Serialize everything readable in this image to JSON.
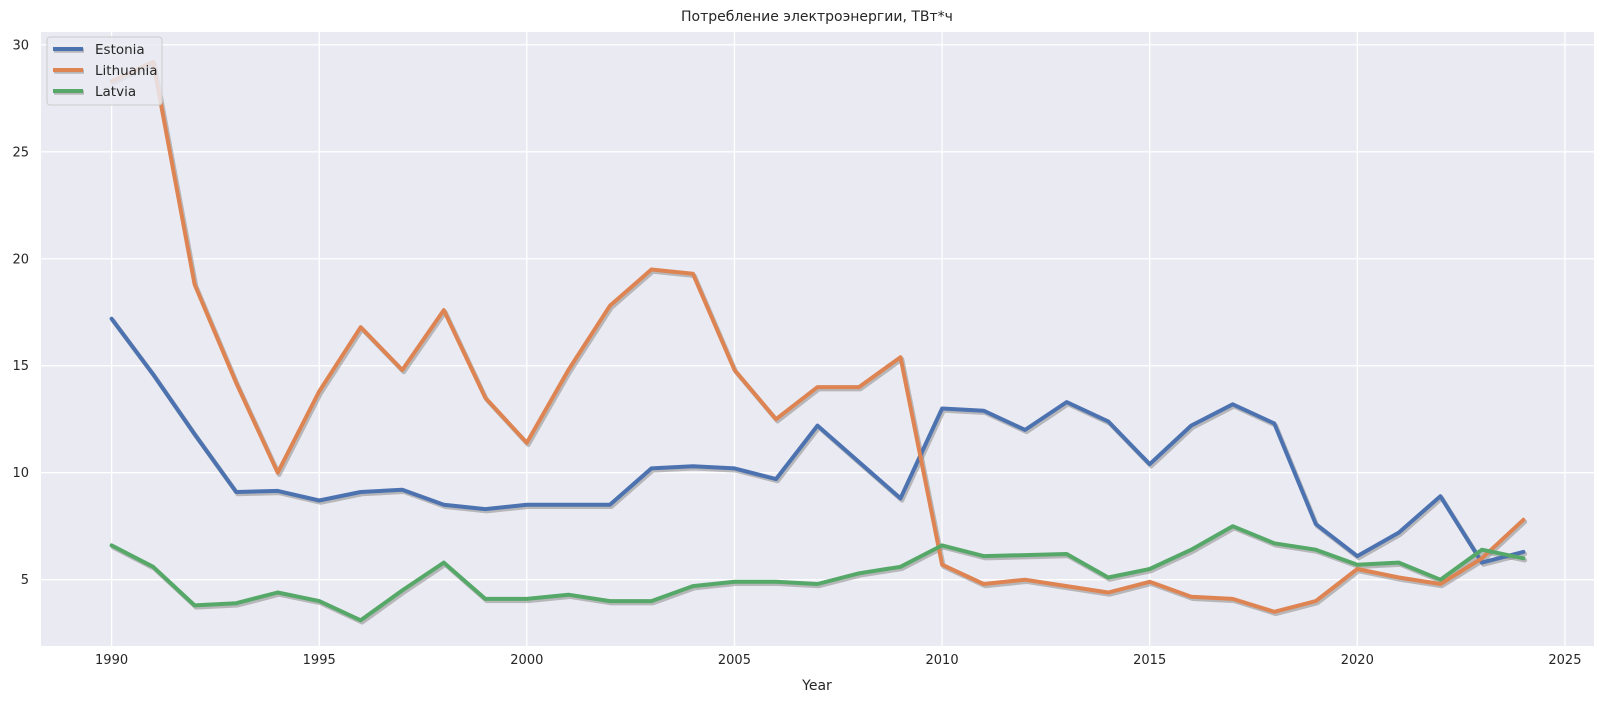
{
  "chart_data": {
    "type": "line",
    "title": "Потребление электроэнергии, ТВт*ч",
    "xlabel": "Year",
    "ylabel": "",
    "xlim": [
      1988.3,
      2025.7
    ],
    "ylim": [
      1.9,
      30.6
    ],
    "xticks": [
      1990,
      1995,
      2000,
      2005,
      2010,
      2015,
      2020,
      2025
    ],
    "yticks": [
      5,
      10,
      15,
      20,
      25,
      30
    ],
    "grid": true,
    "legend_position": "top-left",
    "x": [
      1990,
      1991,
      1992,
      1993,
      1994,
      1995,
      1996,
      1997,
      1998,
      1999,
      2000,
      2001,
      2002,
      2003,
      2004,
      2005,
      2006,
      2007,
      2008,
      2009,
      2010,
      2011,
      2012,
      2013,
      2014,
      2015,
      2016,
      2017,
      2018,
      2019,
      2020,
      2021,
      2022,
      2023,
      2024
    ],
    "series": [
      {
        "name": "Estonia",
        "color": "#4c72b0",
        "values": [
          17.2,
          14.6,
          11.8,
          9.1,
          9.15,
          8.7,
          9.1,
          9.2,
          8.5,
          8.3,
          8.5,
          8.5,
          8.5,
          10.2,
          10.3,
          10.2,
          9.7,
          12.2,
          10.5,
          8.8,
          13.0,
          12.9,
          12.0,
          13.3,
          12.4,
          10.4,
          12.2,
          13.2,
          12.3,
          7.6,
          6.1,
          7.2,
          8.9,
          5.8,
          6.3
        ]
      },
      {
        "name": "Lithuania",
        "color": "#dd8452",
        "values": [
          28.3,
          29.2,
          18.8,
          14.2,
          10.0,
          13.8,
          16.8,
          14.8,
          17.6,
          13.5,
          11.4,
          14.8,
          17.8,
          19.5,
          19.3,
          14.8,
          12.5,
          14.0,
          14.0,
          15.4,
          5.7,
          4.8,
          5.0,
          4.7,
          4.4,
          4.9,
          4.2,
          4.1,
          3.5,
          4.0,
          5.5,
          5.1,
          4.8,
          6.0,
          7.8
        ]
      },
      {
        "name": "Latvia",
        "color": "#55a868",
        "values": [
          6.6,
          5.6,
          3.8,
          3.9,
          4.4,
          4.0,
          3.1,
          4.5,
          5.8,
          4.1,
          4.1,
          4.3,
          4.0,
          4.0,
          4.7,
          4.9,
          4.9,
          4.8,
          5.3,
          5.6,
          6.6,
          6.1,
          6.15,
          6.2,
          5.1,
          5.5,
          6.4,
          7.5,
          6.7,
          6.4,
          5.7,
          5.8,
          5.0,
          6.4,
          6.0
        ]
      }
    ]
  }
}
